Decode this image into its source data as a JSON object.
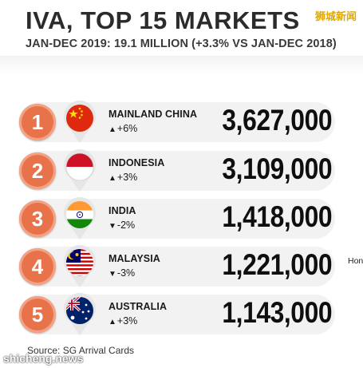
{
  "header": {
    "title": "IVA, TOP 15 MARKETS",
    "subtitle": "JAN-DEC 2019: 19.1 MILLION (+3.3% VS JAN-DEC 2018)",
    "watermark_top": "狮城新闻"
  },
  "chart_data": {
    "type": "table",
    "title": "IVA, TOP 15 MARKETS",
    "subtitle": "JAN-DEC 2019: 19.1 MILLION (+3.3% VS JAN-DEC 2018)",
    "rows": [
      {
        "rank": "1",
        "country": "MAINLAND CHINA",
        "arrow": "▲",
        "change": "+6%",
        "value": "3,627,000",
        "flag": "china-flag-icon"
      },
      {
        "rank": "2",
        "country": "INDONESIA",
        "arrow": "▲",
        "change": "+3%",
        "value": "3,109,000",
        "flag": "indonesia-flag-icon"
      },
      {
        "rank": "3",
        "country": "INDIA",
        "arrow": "▼",
        "change": "-2%",
        "value": "1,418,000",
        "flag": "india-flag-icon"
      },
      {
        "rank": "4",
        "country": "MALAYSIA",
        "arrow": "▼",
        "change": "-3%",
        "value": "1,221,000",
        "flag": "malaysia-flag-icon"
      },
      {
        "rank": "5",
        "country": "AUSTRALIA",
        "arrow": "▲",
        "change": "+3%",
        "value": "1,143,000",
        "flag": "australia-flag-icon"
      }
    ]
  },
  "side_note_cutoff": "Hon",
  "footer": {
    "source": "Source: SG Arrival Cards",
    "watermark_bottom": "shicheng.news"
  },
  "colors": {
    "rank_badge": "#e8734a",
    "row_background": "#f2f2f2"
  }
}
